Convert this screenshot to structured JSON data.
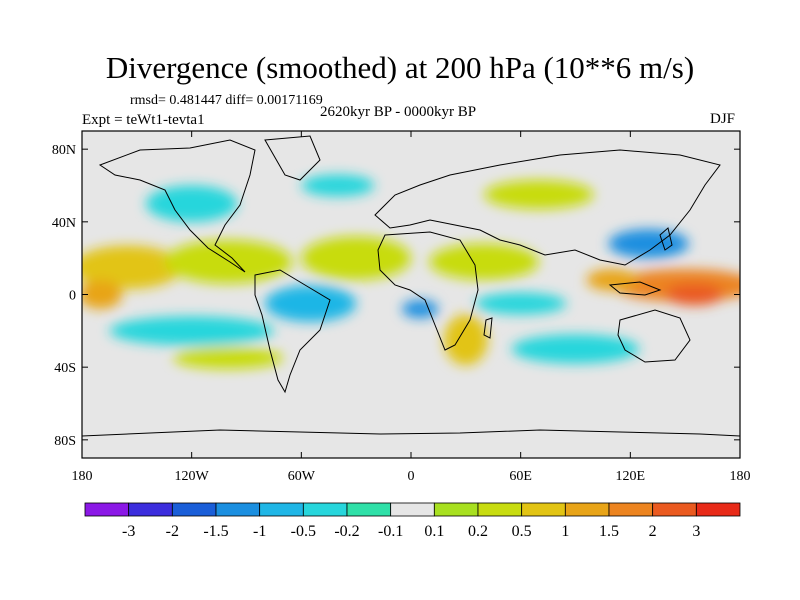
{
  "title": "Divergence (smoothed) at 200 hPa (10**6 m/s)",
  "stats": "rmsd= 0.481447 diff= 0.00171169",
  "period": "2620kyr BP - 0000kyr BP",
  "experiment": "Expt = teWt1-tevta1",
  "season": "DJF",
  "map": {
    "projection": "cylindrical equidistant",
    "lon_range": [
      -180,
      180
    ],
    "lat_range": [
      -90,
      90
    ],
    "lat_ticks": [
      {
        "value": 80,
        "label": "80N"
      },
      {
        "value": 40,
        "label": "40N"
      },
      {
        "value": 0,
        "label": "0"
      },
      {
        "value": -40,
        "label": "40S"
      },
      {
        "value": -80,
        "label": "80S"
      }
    ],
    "lon_ticks": [
      {
        "value": -180,
        "label": "180"
      },
      {
        "value": -120,
        "label": "120W"
      },
      {
        "value": -60,
        "label": "60W"
      },
      {
        "value": 0,
        "label": "0"
      },
      {
        "value": 60,
        "label": "60E"
      },
      {
        "value": 120,
        "label": "120E"
      },
      {
        "value": 180,
        "label": "180"
      }
    ]
  },
  "colorbar": {
    "colors": [
      "#8b18e6",
      "#3c2ddd",
      "#1a5ed8",
      "#1b8fe0",
      "#1fb6e6",
      "#27d6dc",
      "#2fe0a8",
      "#e6e6e6",
      "#a8e020",
      "#c8dc10",
      "#e2c414",
      "#e8a418",
      "#ec8420",
      "#ea5a20",
      "#e82a18"
    ],
    "labels": [
      "-3",
      "-2",
      "-1.5",
      "-1",
      "-0.5",
      "-0.2",
      "-0.1",
      "0.1",
      "0.2",
      "0.5",
      "1",
      "1.5",
      "2",
      "3"
    ]
  },
  "field_regions": [
    {
      "lon": 150,
      "lat": 5,
      "rx": 40,
      "ry": 9,
      "level": 12
    },
    {
      "lon": 155,
      "lat": 0,
      "rx": 16,
      "ry": 6,
      "level": 13
    },
    {
      "lon": 110,
      "lat": 8,
      "rx": 14,
      "ry": 6,
      "level": 11
    },
    {
      "lon": -155,
      "lat": 15,
      "rx": 30,
      "ry": 12,
      "level": 10
    },
    {
      "lon": -100,
      "lat": 18,
      "rx": 35,
      "ry": 12,
      "level": 9
    },
    {
      "lon": -30,
      "lat": 20,
      "rx": 30,
      "ry": 12,
      "level": 9
    },
    {
      "lon": 40,
      "lat": 18,
      "rx": 30,
      "ry": 10,
      "level": 9
    },
    {
      "lon": -170,
      "lat": 0,
      "rx": 12,
      "ry": 8,
      "level": 11
    },
    {
      "lon": 130,
      "lat": 28,
      "rx": 22,
      "ry": 8,
      "level": 3
    },
    {
      "lon": 60,
      "lat": -5,
      "rx": 25,
      "ry": 6,
      "level": 5
    },
    {
      "lon": -55,
      "lat": -5,
      "rx": 25,
      "ry": 10,
      "level": 4
    },
    {
      "lon": 5,
      "lat": -8,
      "rx": 10,
      "ry": 5,
      "level": 3
    },
    {
      "lon": -120,
      "lat": -20,
      "rx": 45,
      "ry": 8,
      "level": 5
    },
    {
      "lon": 90,
      "lat": -30,
      "rx": 35,
      "ry": 8,
      "level": 5
    },
    {
      "lon": 30,
      "lat": -25,
      "rx": 12,
      "ry": 14,
      "level": 10
    },
    {
      "lon": -100,
      "lat": -35,
      "rx": 30,
      "ry": 6,
      "level": 9
    },
    {
      "lon": -120,
      "lat": 50,
      "rx": 25,
      "ry": 10,
      "level": 5
    },
    {
      "lon": 70,
      "lat": 55,
      "rx": 30,
      "ry": 8,
      "level": 9
    },
    {
      "lon": -40,
      "lat": 60,
      "rx": 20,
      "ry": 6,
      "level": 5
    }
  ],
  "colorbar_note": "Values are divergence (10**6 m/s)"
}
